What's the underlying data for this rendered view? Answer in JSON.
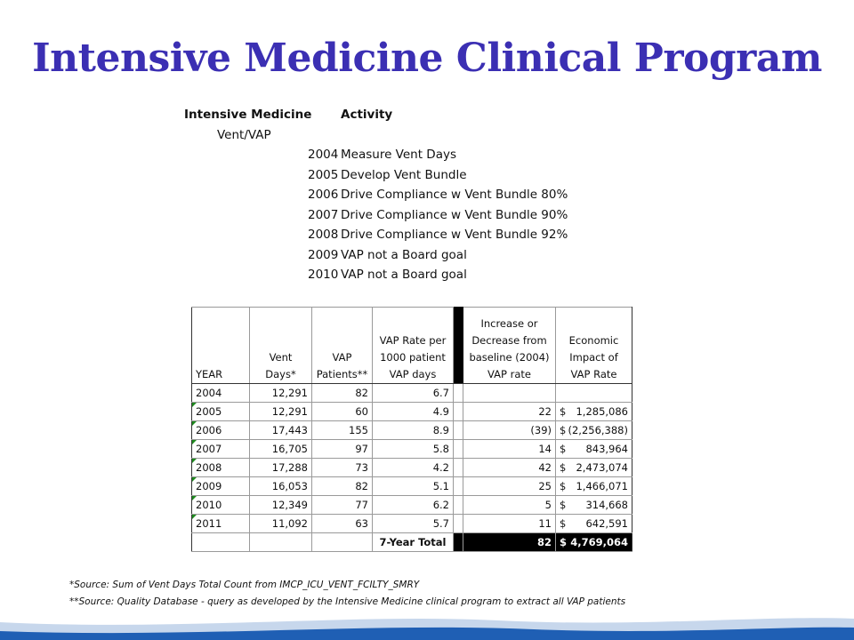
{
  "title": "Intensive Medicine Clinical Program",
  "activity": {
    "header_program": "Intensive Medicine",
    "header_activity": "Activity",
    "program_name": "Vent/VAP",
    "items": [
      {
        "year": "2004",
        "text": "Measure Vent Days"
      },
      {
        "year": "2005",
        "text": "Develop Vent Bundle"
      },
      {
        "year": "2006",
        "text": "Drive Compliance w Vent Bundle 80%"
      },
      {
        "year": "2007",
        "text": "Drive Compliance w Vent Bundle 90%"
      },
      {
        "year": "2008",
        "text": "Drive Compliance w Vent Bundle 92%"
      },
      {
        "year": "2009",
        "text": "VAP not a Board goal"
      },
      {
        "year": "2010",
        "text": "VAP not a Board goal"
      }
    ]
  },
  "table": {
    "headers": {
      "year": "YEAR",
      "vent_days_1": "Vent",
      "vent_days_2": "Days*",
      "vap_patients_1": "VAP",
      "vap_patients_2": "Patients**",
      "vap_rate_1": "VAP Rate per",
      "vap_rate_2": "1000 patient",
      "vap_rate_3": "VAP days",
      "increase_1": "Increase or",
      "increase_2": "Decrease from",
      "increase_3": "baseline (2004)",
      "increase_4": "VAP rate",
      "econ_1": "Economic",
      "econ_2": "Impact of",
      "econ_3": "VAP Rate"
    },
    "rows": [
      {
        "year": "2004",
        "vent_days": "12,291",
        "vap_patients": "82",
        "vap_rate": "6.7",
        "increase": "",
        "econ_sign": "",
        "econ_value": ""
      },
      {
        "year": "2005",
        "vent_days": "12,291",
        "vap_patients": "60",
        "vap_rate": "4.9",
        "increase": "22",
        "econ_sign": "$",
        "econ_value": "1,285,086"
      },
      {
        "year": "2006",
        "vent_days": "17,443",
        "vap_patients": "155",
        "vap_rate": "8.9",
        "increase": "(39)",
        "econ_sign": "$",
        "econ_value": "(2,256,388)"
      },
      {
        "year": "2007",
        "vent_days": "16,705",
        "vap_patients": "97",
        "vap_rate": "5.8",
        "increase": "14",
        "econ_sign": "$",
        "econ_value": "843,964"
      },
      {
        "year": "2008",
        "vent_days": "17,288",
        "vap_patients": "73",
        "vap_rate": "4.2",
        "increase": "42",
        "econ_sign": "$",
        "econ_value": "2,473,074"
      },
      {
        "year": "2009",
        "vent_days": "16,053",
        "vap_patients": "82",
        "vap_rate": "5.1",
        "increase": "25",
        "econ_sign": "$",
        "econ_value": "1,466,071"
      },
      {
        "year": "2010",
        "vent_days": "12,349",
        "vap_patients": "77",
        "vap_rate": "6.2",
        "increase": "5",
        "econ_sign": "$",
        "econ_value": "314,668"
      },
      {
        "year": "2011",
        "vent_days": "11,092",
        "vap_patients": "63",
        "vap_rate": "5.7",
        "increase": "11",
        "econ_sign": "$",
        "econ_value": "642,591"
      }
    ],
    "total": {
      "label": "7-Year Total",
      "increase": "82",
      "econ_sign": "$",
      "econ_value": "4,769,064"
    }
  },
  "footnotes": {
    "note1": "*Source: Sum of Vent Days Total Count from IMCP_ICU_VENT_FCILTY_SMRY",
    "note2": "**Source: Quality Database - query as developed by the Intensive Medicine clinical program to extract all VAP patients"
  },
  "colors": {
    "title": "#3b2fb3",
    "wave": "#1f5fb4"
  }
}
